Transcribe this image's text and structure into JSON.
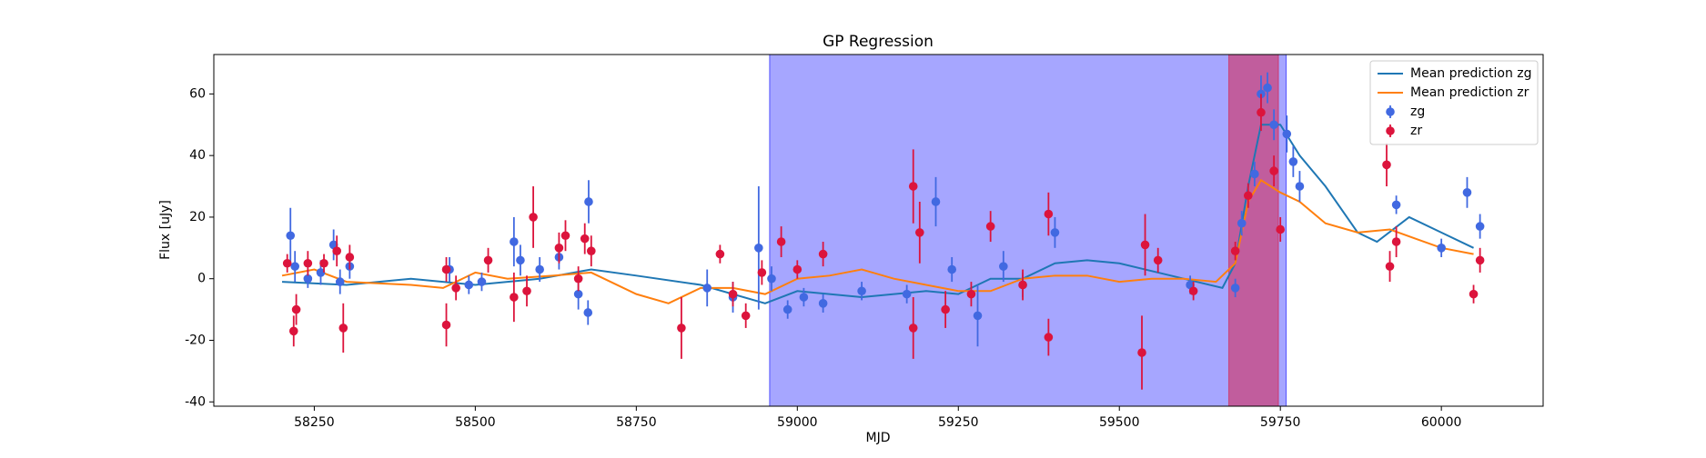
{
  "chart_data": {
    "type": "scatter",
    "title": "GP Regression",
    "x_label": "MJD",
    "y_label": "Flux [uJy]",
    "xlim": [
      58094,
      60158
    ],
    "ylim": [
      -41.4,
      72.8
    ],
    "xticks": [
      58250,
      58500,
      58750,
      59000,
      59250,
      59500,
      59750,
      60000
    ],
    "yticks": [
      -40,
      -20,
      0,
      20,
      40,
      60
    ],
    "legend": "upper right",
    "spans": [
      {
        "xlim": [
          58957,
          59759
        ],
        "color": "#0000ff",
        "opacity": 0.35
      },
      {
        "xlim": [
          59670,
          59747
        ],
        "color": "#dc143c",
        "opacity": 0.5
      }
    ],
    "series": [
      {
        "name": "Mean prediction zg",
        "type": "line",
        "color": "#1f77b4",
        "x": [
          58200,
          58300,
          58400,
          58500,
          58600,
          58680,
          58750,
          58850,
          58950,
          59000,
          59100,
          59200,
          59250,
          59300,
          59350,
          59400,
          59450,
          59500,
          59600,
          59660,
          59680,
          59700,
          59720,
          59750,
          59780,
          59820,
          59870,
          59900,
          59950,
          60000,
          60050
        ],
        "values": [
          -1,
          -2,
          0,
          -2,
          0,
          3,
          1,
          -2,
          -8,
          -4,
          -6,
          -4,
          -5,
          0,
          0,
          5,
          6,
          5,
          0,
          -3,
          5,
          30,
          50,
          50,
          40,
          30,
          15,
          12,
          20,
          15,
          10
        ]
      },
      {
        "name": "Mean prediction zr",
        "type": "line",
        "color": "#ff7f0e",
        "x": [
          58200,
          58250,
          58300,
          58400,
          58450,
          58500,
          58550,
          58620,
          58680,
          58750,
          58800,
          58850,
          58900,
          58950,
          59000,
          59050,
          59100,
          59150,
          59200,
          59250,
          59300,
          59350,
          59400,
          59450,
          59500,
          59550,
          59600,
          59650,
          59680,
          59700,
          59720,
          59750,
          59780,
          59820,
          59870,
          59920,
          59960,
          60000,
          60050
        ],
        "values": [
          1,
          3,
          -1,
          -2,
          -3,
          2,
          0,
          1,
          2,
          -5,
          -8,
          -3,
          -3,
          -5,
          0,
          1,
          3,
          0,
          -2,
          -4,
          -4,
          0,
          1,
          1,
          -1,
          0,
          0,
          -1,
          5,
          25,
          32,
          28,
          25,
          18,
          15,
          16,
          13,
          10,
          8
        ]
      },
      {
        "name": "zg",
        "type": "errorbar",
        "color": "#4169e1",
        "x": [
          58213,
          58220,
          58240,
          58260,
          58280,
          58290,
          58305,
          58460,
          58490,
          58510,
          58560,
          58570,
          58600,
          58630,
          58660,
          58676,
          58675,
          58860,
          58900,
          58940,
          58960,
          58985,
          59010,
          59040,
          59100,
          59170,
          59215,
          59240,
          59280,
          59320,
          59350,
          59400,
          59610,
          59680,
          59690,
          59710,
          59720,
          59730,
          59740,
          59760,
          59770,
          59780,
          59930,
          60000,
          60040,
          60060
        ],
        "values": [
          14,
          4,
          0,
          2,
          11,
          -1,
          4,
          3,
          -2,
          -1,
          12,
          6,
          3,
          7,
          -5,
          25,
          -11,
          -3,
          -6,
          10,
          0,
          -10,
          -6,
          -8,
          -4,
          -5,
          25,
          3,
          -12,
          4,
          -2,
          15,
          -2,
          -3,
          18,
          34,
          60,
          62,
          50,
          47,
          38,
          30,
          24,
          10,
          28,
          17
        ],
        "errors": [
          9,
          5,
          3,
          4,
          5,
          4,
          4,
          4,
          3,
          3,
          8,
          5,
          4,
          4,
          5,
          7,
          4,
          6,
          5,
          20,
          4,
          3,
          3,
          3,
          3,
          3,
          8,
          4,
          10,
          5,
          4,
          5,
          3,
          3,
          4,
          4,
          6,
          5,
          5,
          6,
          5,
          5,
          3,
          3,
          5,
          4
        ]
      },
      {
        "name": "zr",
        "type": "errorbar",
        "color": "#dc143c",
        "x": [
          58208,
          58218,
          58222,
          58240,
          58265,
          58285,
          58295,
          58305,
          58455,
          58455,
          58470,
          58520,
          58560,
          58580,
          58590,
          58630,
          58640,
          58660,
          58670,
          58680,
          58820,
          58880,
          58900,
          58920,
          58945,
          58975,
          59000,
          59040,
          59180,
          59180,
          59190,
          59230,
          59270,
          59300,
          59350,
          59390,
          59390,
          59535,
          59540,
          59560,
          59615,
          59680,
          59700,
          59720,
          59740,
          59750,
          59915,
          59920,
          59930,
          60050,
          60060
        ],
        "values": [
          5,
          -17,
          -10,
          5,
          5,
          9,
          -16,
          7,
          3,
          -15,
          -3,
          6,
          -6,
          -4,
          20,
          10,
          14,
          0,
          13,
          9,
          -16,
          8,
          -5,
          -12,
          2,
          12,
          3,
          8,
          -16,
          30,
          15,
          -10,
          -5,
          17,
          -2,
          21,
          -19,
          -24,
          11,
          6,
          -4,
          9,
          27,
          54,
          35,
          16,
          37,
          4,
          12,
          -5,
          6
        ],
        "errors": [
          3,
          5,
          5,
          4,
          3,
          5,
          8,
          4,
          4,
          7,
          4,
          4,
          8,
          5,
          10,
          5,
          5,
          4,
          5,
          5,
          10,
          3,
          4,
          4,
          4,
          5,
          3,
          4,
          10,
          12,
          10,
          6,
          4,
          5,
          5,
          7,
          6,
          12,
          10,
          4,
          3,
          3,
          4,
          6,
          5,
          4,
          7,
          5,
          5,
          3,
          4
        ]
      }
    ]
  }
}
